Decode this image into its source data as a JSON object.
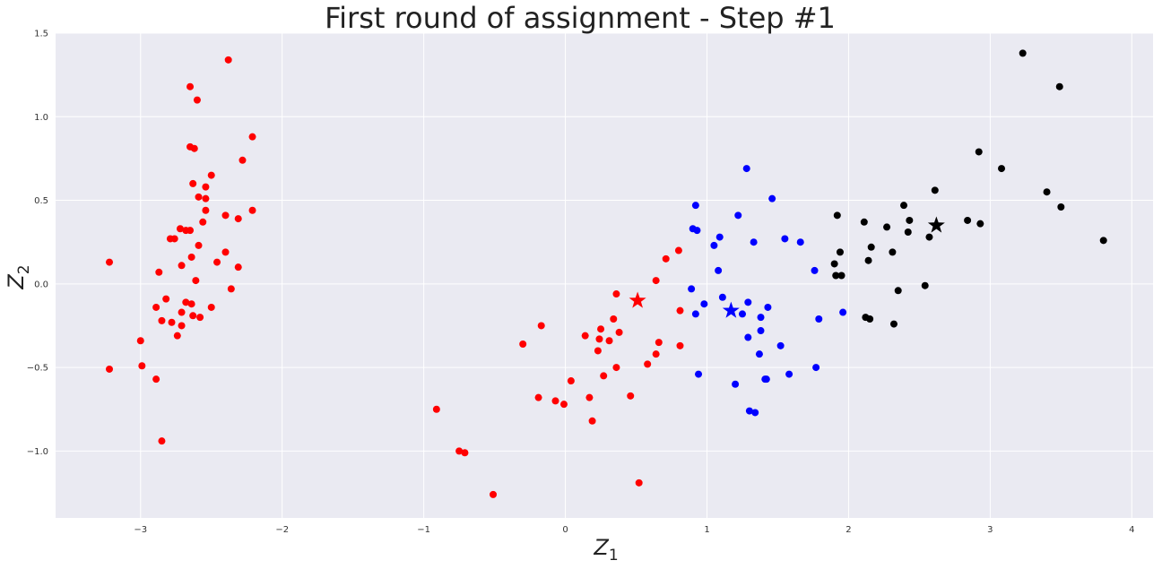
{
  "chart_data": {
    "type": "scatter",
    "title": "First round of assignment - Step #1",
    "xlabel": "Z",
    "xlabel_sub": "1",
    "ylabel": "Z",
    "ylabel_sub": "2",
    "xlim": [
      -3.6,
      4.15
    ],
    "ylim": [
      -1.4,
      1.5
    ],
    "xticks": [
      -3,
      -2,
      -1,
      0,
      1,
      2,
      3,
      4
    ],
    "yticks": [
      -1.0,
      -0.5,
      0.0,
      0.5,
      1.0,
      1.5
    ],
    "grid": true,
    "background": "#eaeaf2",
    "series": [
      {
        "color": "#ff0000",
        "points": [
          [
            -2.38,
            1.34
          ],
          [
            -2.65,
            1.18
          ],
          [
            -2.6,
            1.1
          ],
          [
            -2.65,
            0.82
          ],
          [
            -2.62,
            0.81
          ],
          [
            -2.21,
            0.88
          ],
          [
            -2.28,
            0.74
          ],
          [
            -2.5,
            0.65
          ],
          [
            -2.63,
            0.6
          ],
          [
            -2.54,
            0.58
          ],
          [
            -2.59,
            0.52
          ],
          [
            -2.54,
            0.51
          ],
          [
            -2.54,
            0.44
          ],
          [
            -2.21,
            0.44
          ],
          [
            -2.4,
            0.41
          ],
          [
            -2.31,
            0.39
          ],
          [
            -2.56,
            0.37
          ],
          [
            -2.72,
            0.33
          ],
          [
            -2.68,
            0.32
          ],
          [
            -2.65,
            0.32
          ],
          [
            -2.79,
            0.27
          ],
          [
            -2.76,
            0.27
          ],
          [
            -2.59,
            0.23
          ],
          [
            -2.4,
            0.19
          ],
          [
            -2.64,
            0.16
          ],
          [
            -2.46,
            0.13
          ],
          [
            -3.22,
            0.13
          ],
          [
            -2.71,
            0.11
          ],
          [
            -2.31,
            0.1
          ],
          [
            -2.87,
            0.07
          ],
          [
            -2.61,
            0.02
          ],
          [
            -2.36,
            -0.03
          ],
          [
            -2.82,
            -0.09
          ],
          [
            -2.68,
            -0.11
          ],
          [
            -2.64,
            -0.12
          ],
          [
            -2.89,
            -0.14
          ],
          [
            -2.5,
            -0.14
          ],
          [
            -2.71,
            -0.17
          ],
          [
            -2.63,
            -0.19
          ],
          [
            -2.58,
            -0.2
          ],
          [
            -2.85,
            -0.22
          ],
          [
            -2.78,
            -0.23
          ],
          [
            -2.71,
            -0.25
          ],
          [
            -2.74,
            -0.31
          ],
          [
            -3.0,
            -0.34
          ],
          [
            -2.99,
            -0.49
          ],
          [
            -3.22,
            -0.51
          ],
          [
            -2.89,
            -0.57
          ],
          [
            -2.85,
            -0.94
          ],
          [
            -0.3,
            -0.36
          ],
          [
            -0.17,
            -0.25
          ],
          [
            -0.19,
            -0.68
          ],
          [
            -0.07,
            -0.7
          ],
          [
            -0.01,
            -0.72
          ],
          [
            0.04,
            -0.58
          ],
          [
            0.14,
            -0.31
          ],
          [
            0.17,
            -0.68
          ],
          [
            0.19,
            -0.82
          ],
          [
            0.23,
            -0.4
          ],
          [
            0.24,
            -0.33
          ],
          [
            0.25,
            -0.27
          ],
          [
            0.27,
            -0.55
          ],
          [
            0.31,
            -0.34
          ],
          [
            0.34,
            -0.21
          ],
          [
            0.36,
            -0.06
          ],
          [
            0.36,
            -0.5
          ],
          [
            0.38,
            -0.29
          ],
          [
            0.46,
            -0.67
          ],
          [
            0.52,
            -1.19
          ],
          [
            0.58,
            -0.48
          ],
          [
            0.64,
            0.02
          ],
          [
            0.64,
            -0.42
          ],
          [
            0.66,
            -0.35
          ],
          [
            0.71,
            0.15
          ],
          [
            0.8,
            0.2
          ],
          [
            0.81,
            -0.16
          ],
          [
            0.81,
            -0.37
          ],
          [
            -0.91,
            -0.75
          ],
          [
            -0.75,
            -1.0
          ],
          [
            -0.71,
            -1.01
          ],
          [
            -0.51,
            -1.26
          ]
        ]
      },
      {
        "color": "#0000ff",
        "points": [
          [
            1.28,
            0.69
          ],
          [
            1.46,
            0.51
          ],
          [
            0.92,
            0.47
          ],
          [
            1.22,
            0.41
          ],
          [
            0.9,
            0.33
          ],
          [
            0.93,
            0.32
          ],
          [
            1.09,
            0.28
          ],
          [
            1.55,
            0.27
          ],
          [
            1.05,
            0.23
          ],
          [
            1.33,
            0.25
          ],
          [
            1.66,
            0.25
          ],
          [
            1.76,
            0.08
          ],
          [
            1.08,
            0.08
          ],
          [
            0.89,
            -0.03
          ],
          [
            1.11,
            -0.08
          ],
          [
            1.29,
            -0.11
          ],
          [
            0.98,
            -0.12
          ],
          [
            1.43,
            -0.14
          ],
          [
            1.25,
            -0.18
          ],
          [
            0.92,
            -0.18
          ],
          [
            1.38,
            -0.2
          ],
          [
            1.79,
            -0.21
          ],
          [
            1.96,
            -0.17
          ],
          [
            1.38,
            -0.28
          ],
          [
            1.29,
            -0.32
          ],
          [
            1.52,
            -0.37
          ],
          [
            1.37,
            -0.42
          ],
          [
            1.77,
            -0.5
          ],
          [
            0.94,
            -0.54
          ],
          [
            1.58,
            -0.54
          ],
          [
            1.41,
            -0.57
          ],
          [
            1.42,
            -0.57
          ],
          [
            1.2,
            -0.6
          ],
          [
            1.3,
            -0.76
          ],
          [
            1.34,
            -0.77
          ]
        ]
      },
      {
        "color": "#000000",
        "points": [
          [
            3.23,
            1.38
          ],
          [
            3.49,
            1.18
          ],
          [
            2.92,
            0.79
          ],
          [
            3.08,
            0.69
          ],
          [
            2.61,
            0.56
          ],
          [
            3.4,
            0.55
          ],
          [
            2.39,
            0.47
          ],
          [
            3.5,
            0.46
          ],
          [
            1.92,
            0.41
          ],
          [
            2.43,
            0.38
          ],
          [
            2.11,
            0.37
          ],
          [
            2.84,
            0.38
          ],
          [
            2.93,
            0.36
          ],
          [
            2.27,
            0.34
          ],
          [
            2.42,
            0.31
          ],
          [
            2.57,
            0.28
          ],
          [
            3.8,
            0.26
          ],
          [
            2.16,
            0.22
          ],
          [
            1.94,
            0.19
          ],
          [
            2.31,
            0.19
          ],
          [
            2.14,
            0.14
          ],
          [
            1.9,
            0.12
          ],
          [
            1.91,
            0.05
          ],
          [
            1.95,
            0.05
          ],
          [
            2.54,
            -0.01
          ],
          [
            2.35,
            -0.04
          ],
          [
            2.12,
            -0.2
          ],
          [
            2.15,
            -0.21
          ],
          [
            2.32,
            -0.24
          ]
        ]
      }
    ],
    "centroids": [
      {
        "color": "#ff0000",
        "x": 0.51,
        "y": -0.1
      },
      {
        "color": "#0000ff",
        "x": 1.17,
        "y": -0.16
      },
      {
        "color": "#000000",
        "x": 2.62,
        "y": 0.35
      }
    ]
  }
}
